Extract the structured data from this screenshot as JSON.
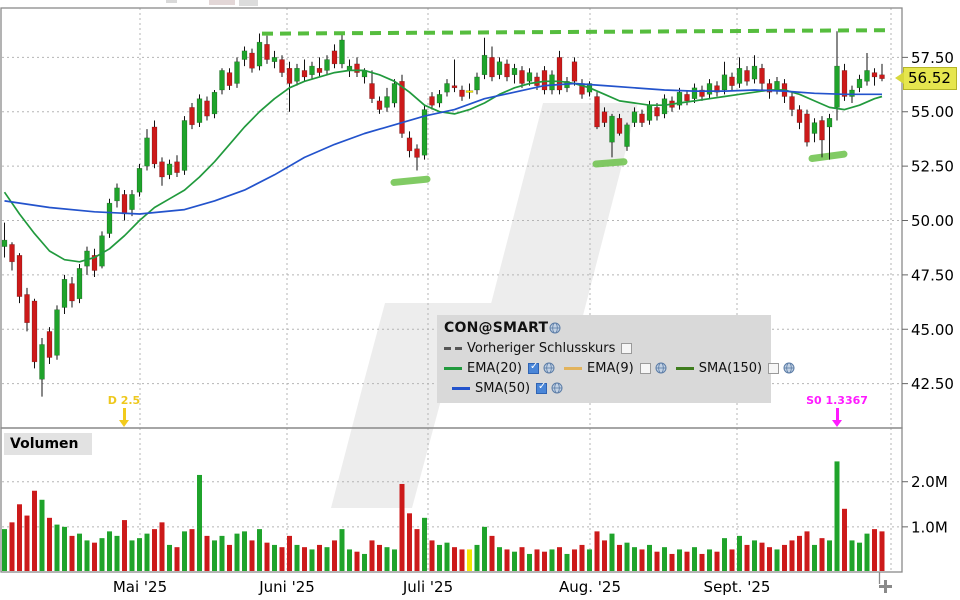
{
  "legend": {
    "title": "CON@SMART",
    "items": [
      {
        "label": "Vorheriger Schlusskurs",
        "checked": false,
        "swatch": "dashed-gray",
        "color": "#555555",
        "globe": false
      },
      {
        "label": "EMA(20)",
        "checked": true,
        "swatch": "line",
        "color": "#219a3d",
        "globe": true
      },
      {
        "label": "EMA(9)",
        "checked": false,
        "swatch": "line",
        "color": "#e2b35c",
        "globe": true
      },
      {
        "label": "SMA(150)",
        "checked": false,
        "swatch": "line",
        "color": "#3f7d1e",
        "globe": true
      },
      {
        "label": "SMA(50)",
        "checked": true,
        "swatch": "line",
        "color": "#2353cc",
        "globe": true
      }
    ]
  },
  "price_tag": {
    "value": "56.52",
    "bg": "#e6e64e"
  },
  "volume_label": "Volumen",
  "annotations": {
    "dividend": {
      "text": "D 2.5",
      "color": "#eec81e",
      "candle_index": 16
    },
    "split": {
      "text": "S0 1.3367",
      "color": "#ff1aff",
      "candle_index": 111
    }
  },
  "chart_data": {
    "type": "candlestick",
    "symbol": "CON@SMART",
    "subtype": "price+volume",
    "grid": true,
    "legend_position": "center",
    "x_axis": {
      "month_labels": [
        {
          "label": "Mai '25",
          "x": 140
        },
        {
          "label": "Juni '25",
          "x": 287
        },
        {
          "label": "Juli '25",
          "x": 428
        },
        {
          "label": "Aug. '25",
          "x": 590
        },
        {
          "label": "Sept. '25",
          "x": 737
        }
      ],
      "extra_gridline_x": 891
    },
    "price_axis": {
      "ticks": [
        {
          "p": 57.5,
          "label": "57.50"
        },
        {
          "p": 55.0,
          "label": "55.00"
        },
        {
          "p": 52.5,
          "label": "52.50"
        },
        {
          "p": 50.0,
          "label": "50.00"
        },
        {
          "p": 47.5,
          "label": "47.50"
        },
        {
          "p": 45.0,
          "label": "45.00"
        },
        {
          "p": 42.5,
          "label": "42.50"
        }
      ],
      "last_price": 56.52,
      "ylim": [
        40.46,
        59.77
      ]
    },
    "volume_axis": {
      "ticks": [
        {
          "v": 2.0,
          "label": "2.0M"
        },
        {
          "v": 1.0,
          "label": "1.0M"
        }
      ],
      "vlim": [
        0,
        3.19
      ]
    },
    "colors": {
      "up": "#1fa32b",
      "down": "#cc1a1a",
      "doji": "#f2e500",
      "ema20": "#219a3d",
      "sma50": "#2353cc",
      "trendline": "#56bd3e",
      "highlight": "#6cc24a",
      "grid": "#b5b5b5",
      "border": "#8a8a8a"
    },
    "doji_indices": [
      62
    ],
    "candles_format": [
      "open",
      "high",
      "low",
      "close",
      "volume_M"
    ],
    "candles": [
      [
        48.8,
        49.9,
        48.3,
        49.1,
        0.95
      ],
      [
        48.9,
        49.0,
        47.7,
        48.1,
        1.1
      ],
      [
        48.4,
        48.5,
        46.2,
        46.5,
        1.5
      ],
      [
        46.6,
        46.9,
        44.9,
        45.3,
        1.25
      ],
      [
        46.3,
        46.4,
        43.2,
        43.5,
        1.8
      ],
      [
        42.7,
        44.6,
        41.9,
        44.3,
        1.6
      ],
      [
        44.9,
        45.1,
        43.4,
        43.7,
        1.2
      ],
      [
        43.8,
        46.1,
        43.6,
        45.9,
        1.05
      ],
      [
        46.0,
        47.5,
        45.7,
        47.3,
        1.0
      ],
      [
        47.1,
        47.4,
        46.0,
        46.3,
        0.8
      ],
      [
        46.4,
        48.0,
        46.2,
        47.8,
        0.85
      ],
      [
        47.9,
        48.8,
        47.5,
        48.6,
        0.7
      ],
      [
        48.4,
        48.7,
        47.4,
        47.7,
        0.65
      ],
      [
        47.9,
        49.5,
        47.8,
        49.3,
        0.75
      ],
      [
        49.4,
        51.0,
        49.2,
        50.8,
        0.9
      ],
      [
        50.9,
        51.7,
        50.6,
        51.5,
        0.8
      ],
      [
        51.2,
        51.4,
        50.0,
        50.3,
        1.15
      ],
      [
        50.5,
        51.4,
        50.2,
        51.2,
        0.7
      ],
      [
        51.3,
        52.6,
        51.1,
        52.4,
        0.75
      ],
      [
        52.5,
        54.2,
        52.3,
        53.8,
        0.85
      ],
      [
        54.3,
        54.6,
        52.4,
        52.6,
        0.95
      ],
      [
        52.7,
        52.9,
        51.6,
        52.0,
        1.1
      ],
      [
        52.1,
        52.8,
        51.9,
        52.6,
        0.6
      ],
      [
        52.7,
        53.0,
        52.0,
        52.2,
        0.55
      ],
      [
        52.3,
        54.8,
        52.1,
        54.6,
        0.9
      ],
      [
        55.2,
        55.4,
        54.2,
        54.4,
        0.95
      ],
      [
        54.5,
        55.8,
        54.3,
        55.6,
        2.15
      ],
      [
        55.5,
        55.7,
        54.6,
        54.8,
        0.8
      ],
      [
        54.9,
        56.0,
        54.7,
        55.9,
        0.7
      ],
      [
        56.0,
        57.0,
        55.8,
        56.9,
        0.8
      ],
      [
        56.8,
        57.0,
        56.0,
        56.2,
        0.6
      ],
      [
        56.3,
        57.5,
        56.1,
        57.3,
        0.85
      ],
      [
        57.4,
        58.0,
        57.1,
        57.8,
        0.9
      ],
      [
        57.7,
        57.9,
        56.8,
        57.0,
        0.7
      ],
      [
        57.1,
        58.6,
        56.9,
        58.2,
        0.95
      ],
      [
        58.1,
        58.5,
        57.2,
        57.4,
        0.65
      ],
      [
        57.3,
        57.8,
        57.0,
        57.5,
        0.6
      ],
      [
        57.4,
        57.6,
        56.6,
        56.8,
        0.55
      ],
      [
        57.0,
        57.3,
        55.0,
        56.3,
        0.8
      ],
      [
        56.4,
        57.2,
        56.2,
        57.0,
        0.6
      ],
      [
        56.9,
        57.4,
        56.4,
        56.6,
        0.55
      ],
      [
        56.7,
        57.3,
        56.5,
        57.1,
        0.5
      ],
      [
        57.0,
        57.5,
        56.6,
        56.8,
        0.6
      ],
      [
        56.9,
        57.6,
        56.7,
        57.4,
        0.55
      ],
      [
        57.8,
        58.1,
        57.0,
        57.2,
        0.7
      ],
      [
        57.2,
        58.6,
        57.0,
        58.3,
        0.95
      ],
      [
        56.9,
        57.4,
        56.6,
        57.1,
        0.5
      ],
      [
        57.2,
        57.5,
        56.6,
        56.8,
        0.45
      ],
      [
        56.6,
        57.0,
        56.3,
        56.9,
        0.4
      ],
      [
        56.3,
        56.9,
        55.4,
        55.6,
        0.7
      ],
      [
        55.5,
        55.7,
        54.9,
        55.1,
        0.6
      ],
      [
        55.2,
        56.1,
        55.0,
        55.7,
        0.55
      ],
      [
        55.4,
        56.5,
        55.2,
        56.3,
        0.5
      ],
      [
        56.4,
        56.7,
        53.8,
        54.0,
        1.95
      ],
      [
        53.8,
        54.1,
        52.9,
        53.2,
        1.3
      ],
      [
        53.3,
        53.5,
        52.3,
        52.9,
        0.95
      ],
      [
        53.0,
        55.3,
        52.8,
        55.1,
        1.2
      ],
      [
        55.7,
        55.9,
        55.1,
        55.3,
        0.7
      ],
      [
        55.4,
        56.0,
        55.2,
        55.8,
        0.6
      ],
      [
        55.9,
        56.5,
        55.7,
        56.3,
        0.65
      ],
      [
        56.2,
        57.4,
        55.9,
        56.1,
        0.55
      ],
      [
        56.0,
        56.2,
        55.5,
        55.7,
        0.5
      ],
      [
        55.93,
        56.3,
        55.6,
        55.97,
        0.5
      ],
      [
        56.0,
        56.8,
        55.8,
        56.6,
        0.6
      ],
      [
        56.7,
        58.4,
        56.5,
        57.6,
        1.0
      ],
      [
        57.5,
        58.0,
        56.4,
        56.6,
        0.8
      ],
      [
        56.7,
        57.5,
        56.5,
        57.3,
        0.55
      ],
      [
        57.2,
        57.4,
        56.4,
        56.6,
        0.5
      ],
      [
        56.7,
        57.2,
        56.3,
        57.0,
        0.45
      ],
      [
        56.9,
        57.1,
        56.1,
        56.3,
        0.55
      ],
      [
        56.4,
        57.0,
        56.2,
        56.8,
        0.4
      ],
      [
        56.6,
        56.8,
        56.0,
        56.2,
        0.5
      ],
      [
        56.9,
        57.1,
        55.8,
        56.0,
        0.45
      ],
      [
        56.0,
        56.9,
        55.8,
        56.7,
        0.5
      ],
      [
        57.5,
        57.8,
        55.8,
        56.0,
        0.55
      ],
      [
        56.1,
        56.6,
        55.9,
        56.4,
        0.4
      ],
      [
        57.3,
        57.5,
        56.2,
        56.4,
        0.5
      ],
      [
        56.3,
        56.5,
        55.6,
        55.8,
        0.6
      ],
      [
        55.9,
        56.4,
        55.7,
        56.3,
        0.5
      ],
      [
        55.7,
        55.9,
        54.2,
        54.3,
        0.9
      ],
      [
        55.0,
        55.2,
        54.3,
        54.5,
        0.7
      ],
      [
        53.6,
        54.9,
        52.9,
        54.8,
        0.85
      ],
      [
        54.7,
        54.9,
        53.9,
        54.0,
        0.6
      ],
      [
        53.4,
        54.5,
        53.2,
        54.4,
        0.65
      ],
      [
        54.5,
        55.2,
        54.3,
        55.0,
        0.55
      ],
      [
        54.9,
        55.1,
        54.3,
        54.5,
        0.5
      ],
      [
        54.6,
        55.5,
        54.4,
        55.3,
        0.6
      ],
      [
        55.2,
        55.4,
        54.6,
        54.8,
        0.45
      ],
      [
        54.9,
        55.8,
        54.7,
        55.6,
        0.55
      ],
      [
        55.5,
        55.7,
        55.0,
        55.2,
        0.4
      ],
      [
        55.3,
        56.1,
        55.1,
        55.9,
        0.5
      ],
      [
        55.8,
        56.0,
        55.3,
        55.5,
        0.45
      ],
      [
        55.6,
        56.3,
        55.4,
        56.1,
        0.55
      ],
      [
        56.0,
        56.2,
        55.5,
        55.7,
        0.4
      ],
      [
        55.8,
        56.5,
        55.6,
        56.3,
        0.5
      ],
      [
        56.2,
        56.4,
        55.7,
        55.9,
        0.45
      ],
      [
        56.0,
        57.3,
        55.8,
        56.7,
        0.75
      ],
      [
        56.6,
        56.8,
        56.0,
        56.2,
        0.5
      ],
      [
        56.3,
        57.5,
        56.1,
        57.0,
        0.8
      ],
      [
        56.9,
        57.1,
        56.2,
        56.4,
        0.6
      ],
      [
        56.5,
        57.6,
        56.3,
        57.1,
        0.7
      ],
      [
        57.0,
        57.2,
        56.0,
        56.3,
        0.65
      ],
      [
        56.3,
        56.5,
        55.6,
        55.9,
        0.55
      ],
      [
        56.0,
        56.6,
        55.8,
        56.4,
        0.5
      ],
      [
        56.3,
        56.5,
        55.4,
        55.7,
        0.6
      ],
      [
        55.7,
        55.9,
        54.8,
        55.1,
        0.7
      ],
      [
        55.1,
        55.3,
        54.2,
        54.5,
        0.8
      ],
      [
        54.9,
        55.1,
        53.4,
        53.6,
        0.9
      ],
      [
        54.0,
        54.7,
        53.6,
        54.5,
        0.6
      ],
      [
        54.6,
        54.8,
        52.9,
        53.7,
        0.75
      ],
      [
        54.3,
        54.9,
        52.8,
        54.7,
        0.7
      ],
      [
        55.2,
        58.7,
        54.6,
        57.1,
        2.45
      ],
      [
        56.9,
        57.2,
        55.5,
        55.7,
        1.4
      ],
      [
        55.7,
        56.2,
        55.4,
        56.0,
        0.7
      ],
      [
        56.1,
        56.7,
        55.9,
        56.5,
        0.65
      ],
      [
        56.4,
        57.7,
        56.2,
        56.9,
        0.85
      ],
      [
        56.8,
        57.0,
        56.2,
        56.6,
        0.95
      ],
      [
        56.7,
        57.2,
        56.4,
        56.52,
        0.9
      ]
    ],
    "ema20": [
      [
        0,
        51.3
      ],
      [
        2,
        50.3
      ],
      [
        4,
        49.4
      ],
      [
        6,
        48.6
      ],
      [
        8,
        48.2
      ],
      [
        10,
        48.1
      ],
      [
        12,
        48.3
      ],
      [
        14,
        48.7
      ],
      [
        16,
        49.3
      ],
      [
        18,
        50.0
      ],
      [
        20,
        50.6
      ],
      [
        22,
        51.0
      ],
      [
        24,
        51.4
      ],
      [
        26,
        52.0
      ],
      [
        28,
        52.7
      ],
      [
        30,
        53.5
      ],
      [
        32,
        54.3
      ],
      [
        34,
        55.0
      ],
      [
        36,
        55.6
      ],
      [
        38,
        56.1
      ],
      [
        40,
        56.4
      ],
      [
        42,
        56.6
      ],
      [
        44,
        56.8
      ],
      [
        46,
        56.9
      ],
      [
        48,
        56.9
      ],
      [
        50,
        56.7
      ],
      [
        52,
        56.4
      ],
      [
        54,
        55.9
      ],
      [
        56,
        55.3
      ],
      [
        58,
        55.0
      ],
      [
        60,
        54.9
      ],
      [
        62,
        55.1
      ],
      [
        64,
        55.4
      ],
      [
        66,
        55.8
      ],
      [
        68,
        56.1
      ],
      [
        70,
        56.3
      ],
      [
        72,
        56.4
      ],
      [
        74,
        56.4
      ],
      [
        76,
        56.3
      ],
      [
        78,
        56.1
      ],
      [
        80,
        55.8
      ],
      [
        82,
        55.5
      ],
      [
        84,
        55.4
      ],
      [
        86,
        55.3
      ],
      [
        88,
        55.3
      ],
      [
        90,
        55.4
      ],
      [
        92,
        55.5
      ],
      [
        94,
        55.6
      ],
      [
        96,
        55.7
      ],
      [
        98,
        55.8
      ],
      [
        100,
        55.9
      ],
      [
        102,
        56.0
      ],
      [
        104,
        56.0
      ],
      [
        106,
        55.8
      ],
      [
        108,
        55.5
      ],
      [
        110,
        55.2
      ],
      [
        112,
        55.1
      ],
      [
        114,
        55.3
      ],
      [
        116,
        55.6
      ],
      [
        117,
        55.7
      ]
    ],
    "sma50": [
      [
        0,
        50.9
      ],
      [
        6,
        50.6
      ],
      [
        12,
        50.4
      ],
      [
        18,
        50.3
      ],
      [
        24,
        50.5
      ],
      [
        28,
        50.9
      ],
      [
        32,
        51.4
      ],
      [
        36,
        52.1
      ],
      [
        40,
        52.9
      ],
      [
        44,
        53.5
      ],
      [
        48,
        54.0
      ],
      [
        52,
        54.4
      ],
      [
        56,
        54.8
      ],
      [
        60,
        55.1
      ],
      [
        64,
        55.6
      ],
      [
        68,
        55.9
      ],
      [
        72,
        56.2
      ],
      [
        76,
        56.3
      ],
      [
        80,
        56.2
      ],
      [
        84,
        56.1
      ],
      [
        88,
        56.0
      ],
      [
        92,
        55.95
      ],
      [
        96,
        55.95
      ],
      [
        100,
        56.0
      ],
      [
        104,
        55.95
      ],
      [
        108,
        55.85
      ],
      [
        112,
        55.8
      ],
      [
        117,
        55.8
      ]
    ],
    "trendline": {
      "x1": 262,
      "p1": 58.59,
      "x2": 890,
      "p2": 58.75,
      "style": "dashed"
    },
    "highlights": [
      {
        "x1": 394,
        "p1": 51.75,
        "x2": 427,
        "p2": 51.9
      },
      {
        "x1": 596,
        "p1": 52.6,
        "x2": 624,
        "p2": 52.7
      },
      {
        "x1": 812,
        "p1": 52.85,
        "x2": 844,
        "p2": 53.05
      }
    ],
    "layout_hints": {
      "price_panel_y": [
        8,
        428
      ],
      "volume_panel_y": [
        428,
        572
      ],
      "plot_x": [
        1,
        902
      ],
      "x0": 4.5,
      "pitch": 7.5,
      "legend_xywh": [
        437,
        315,
        334,
        88
      ]
    }
  }
}
